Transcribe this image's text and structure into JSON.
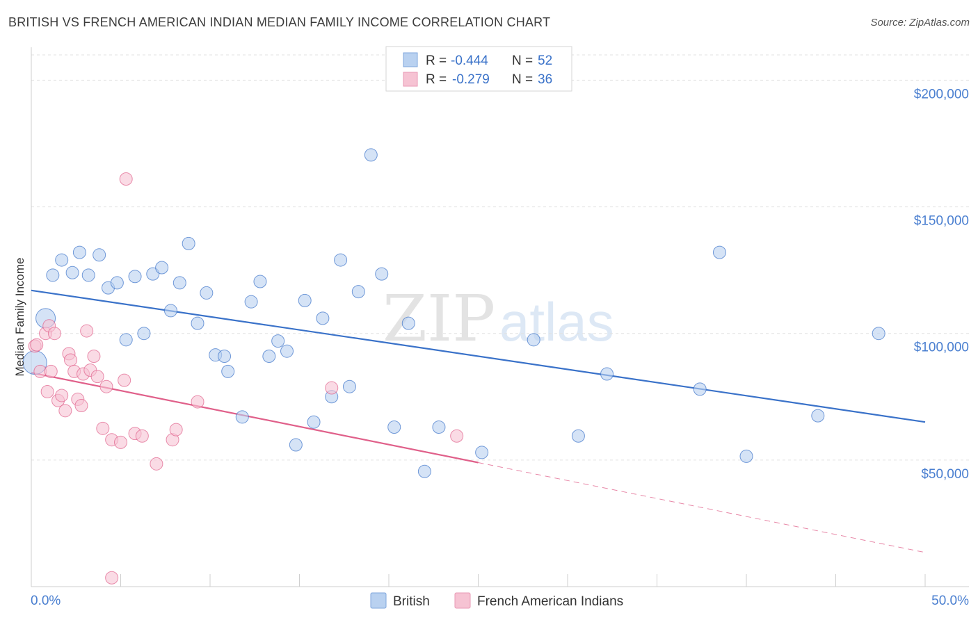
{
  "header": {
    "title": "BRITISH VS FRENCH AMERICAN INDIAN MEDIAN FAMILY INCOME CORRELATION CHART",
    "source": "Source: ZipAtlas.com"
  },
  "colors": {
    "british": "#3a72c9",
    "british_fill": "#b9d1f0",
    "french": "#e0608a",
    "french_fill": "#f6c3d3",
    "grid": "#dddddd"
  },
  "legend": {
    "rows": [
      {
        "r_label": "R = ",
        "r_value": "-0.444",
        "n_label": "N = ",
        "n_value": "52"
      },
      {
        "r_label": "R = ",
        "r_value": "-0.279",
        "n_label": "N = ",
        "n_value": "36"
      }
    ]
  },
  "watermark": {
    "zip": "ZIP",
    "atlas": "atlas"
  },
  "chart_data": {
    "type": "scatter",
    "title": "BRITISH VS FRENCH AMERICAN INDIAN MEDIAN FAMILY INCOME CORRELATION CHART",
    "xlabel": "",
    "ylabel": "Median Family Income",
    "xlim": [
      0,
      50
    ],
    "ylim": [
      0,
      210000
    ],
    "x_tick_labels": [
      "0.0%",
      "50.0%"
    ],
    "y_ticks": [
      {
        "value": 50000,
        "label": "$50,000"
      },
      {
        "value": 100000,
        "label": "$100,000"
      },
      {
        "value": 150000,
        "label": "$150,000"
      },
      {
        "value": 200000,
        "label": "$200,000"
      }
    ],
    "grid": true,
    "series": [
      {
        "name": "British",
        "color": "#3a72c9",
        "r": -0.444,
        "n": 52,
        "points": [
          [
            0.2,
            88500
          ],
          [
            0.8,
            106000
          ],
          [
            1.2,
            123000
          ],
          [
            1.7,
            129000
          ],
          [
            2.3,
            124000
          ],
          [
            2.7,
            132000
          ],
          [
            3.2,
            123000
          ],
          [
            3.8,
            131000
          ],
          [
            4.3,
            118000
          ],
          [
            4.8,
            120000
          ],
          [
            5.3,
            97500
          ],
          [
            5.8,
            122500
          ],
          [
            6.3,
            100000
          ],
          [
            6.8,
            123500
          ],
          [
            7.3,
            126000
          ],
          [
            7.8,
            109000
          ],
          [
            8.3,
            120000
          ],
          [
            8.8,
            135500
          ],
          [
            9.3,
            104000
          ],
          [
            9.8,
            116000
          ],
          [
            10.3,
            91500
          ],
          [
            10.8,
            91000
          ],
          [
            11.0,
            85000
          ],
          [
            11.8,
            67000
          ],
          [
            12.3,
            112500
          ],
          [
            12.8,
            120500
          ],
          [
            13.3,
            91000
          ],
          [
            13.8,
            97000
          ],
          [
            14.3,
            93000
          ],
          [
            14.8,
            56000
          ],
          [
            15.3,
            113000
          ],
          [
            15.8,
            65000
          ],
          [
            16.3,
            106000
          ],
          [
            16.8,
            75000
          ],
          [
            17.3,
            129000
          ],
          [
            17.8,
            79000
          ],
          [
            18.3,
            116500
          ],
          [
            19.0,
            170500
          ],
          [
            19.6,
            123500
          ],
          [
            20.3,
            63000
          ],
          [
            21.1,
            104000
          ],
          [
            22.0,
            45500
          ],
          [
            22.8,
            63000
          ],
          [
            25.2,
            53000
          ],
          [
            28.1,
            97500
          ],
          [
            30.6,
            59500
          ],
          [
            32.2,
            84000
          ],
          [
            37.4,
            78000
          ],
          [
            38.5,
            132000
          ],
          [
            40.0,
            51500
          ],
          [
            44.0,
            67500
          ],
          [
            47.4,
            100000
          ]
        ]
      },
      {
        "name": "French American Indians",
        "color": "#e0608a",
        "r": -0.279,
        "n": 36,
        "points": [
          [
            0.2,
            95000
          ],
          [
            0.5,
            85000
          ],
          [
            0.8,
            100000
          ],
          [
            0.9,
            77000
          ],
          [
            1.0,
            103000
          ],
          [
            1.1,
            85000
          ],
          [
            1.3,
            100000
          ],
          [
            1.5,
            73500
          ],
          [
            1.7,
            75500
          ],
          [
            1.9,
            69500
          ],
          [
            2.1,
            92000
          ],
          [
            2.2,
            89500
          ],
          [
            2.4,
            85000
          ],
          [
            2.6,
            74000
          ],
          [
            2.8,
            71500
          ],
          [
            2.9,
            84000
          ],
          [
            3.1,
            101000
          ],
          [
            3.3,
            85500
          ],
          [
            3.5,
            91000
          ],
          [
            3.7,
            83000
          ],
          [
            4.0,
            62500
          ],
          [
            4.2,
            79000
          ],
          [
            4.5,
            58000
          ],
          [
            4.5,
            3500
          ],
          [
            5.0,
            57000
          ],
          [
            5.2,
            81500
          ],
          [
            5.3,
            161000
          ],
          [
            5.8,
            60500
          ],
          [
            6.2,
            59500
          ],
          [
            7.0,
            48500
          ],
          [
            7.9,
            58000
          ],
          [
            8.1,
            62000
          ],
          [
            9.3,
            73000
          ],
          [
            16.8,
            78500
          ],
          [
            23.8,
            59500
          ],
          [
            0.3,
            95500
          ]
        ]
      }
    ],
    "trendlines": [
      {
        "series": "British",
        "x": [
          0,
          50
        ],
        "y": [
          117000,
          65000
        ]
      },
      {
        "series": "French American Indians",
        "x": [
          0,
          25
        ],
        "y": [
          84500,
          49000
        ],
        "dashed_extension_to": [
          50,
          13500
        ]
      }
    ]
  }
}
